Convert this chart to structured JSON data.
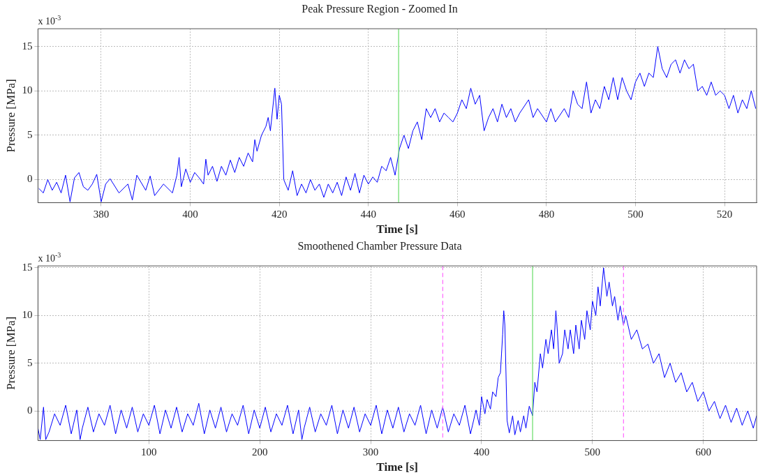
{
  "chart_data": [
    {
      "type": "line",
      "title": "Peak Pressure Region - Zoomed In",
      "xlabel": "Time [s]",
      "ylabel": "Pressure [MPa]",
      "annotations": [
        "x 10$^{-3}$"
      ],
      "series": [
        {
          "color": "#0000ff",
          "x": [
            366,
            367,
            368,
            369,
            370,
            371,
            372,
            373,
            374,
            375,
            376,
            377,
            378,
            379,
            380,
            381,
            382,
            384,
            386,
            387,
            388,
            390,
            391,
            392,
            394,
            396,
            397,
            397.5,
            398,
            399,
            400,
            401,
            402,
            403,
            403.5,
            404,
            405,
            406,
            407,
            408,
            409,
            410,
            411,
            412,
            413,
            414,
            414.5,
            415,
            416,
            417,
            417.5,
            418,
            419,
            419.5,
            420,
            420.5,
            421,
            422,
            423,
            424,
            425,
            426,
            427,
            428,
            429,
            430,
            431,
            432,
            433,
            434,
            435,
            436,
            437,
            438,
            439,
            440,
            441,
            442,
            443,
            444,
            445,
            446,
            447,
            448,
            449,
            450,
            451,
            452,
            453,
            454,
            455,
            456,
            457,
            458,
            459,
            460,
            461,
            462,
            463,
            464,
            465,
            466,
            467,
            468,
            469,
            470,
            471,
            472,
            473,
            474,
            476,
            477,
            478,
            480,
            481,
            482,
            484,
            485,
            486,
            487,
            488,
            489,
            490,
            491,
            492,
            493,
            494,
            495,
            496,
            497,
            498,
            499,
            500,
            501,
            502,
            503,
            504,
            505,
            506,
            507,
            508,
            509,
            510,
            511,
            512,
            513,
            514,
            515,
            516,
            517,
            518,
            519,
            520,
            521,
            522,
            523,
            524,
            525,
            526,
            527
          ],
          "values": [
            -1,
            -1.5,
            0,
            -1.2,
            -0.3,
            -1.5,
            0.5,
            -2.5,
            0.2,
            0.8,
            -0.8,
            -1.2,
            -0.5,
            0.6,
            -2.5,
            -0.5,
            0.1,
            -1.5,
            -0.5,
            -2.3,
            0.5,
            -1.2,
            0.4,
            -1.8,
            -0.5,
            -1.5,
            0.5,
            2.5,
            -0.8,
            1.2,
            -0.3,
            0.8,
            0.2,
            -0.5,
            2.3,
            0.5,
            1.5,
            -0.2,
            1.5,
            0.5,
            2.2,
            0.8,
            2.5,
            1.5,
            3,
            2,
            4.5,
            3.2,
            5,
            6,
            7,
            5.5,
            10.3,
            6.8,
            9.5,
            8.5,
            0,
            -1.2,
            1,
            -1.8,
            -0.5,
            -1.5,
            0,
            -1.2,
            -0.5,
            -2,
            -0.5,
            -1.5,
            -0.3,
            -1.8,
            0.3,
            -1.2,
            0.7,
            -1.5,
            0.5,
            -0.5,
            0.3,
            -0.3,
            1.5,
            1,
            2.5,
            0.5,
            3.5,
            5,
            3.5,
            5.5,
            6.5,
            4.5,
            8,
            7,
            8,
            6.5,
            7.5,
            7,
            6.5,
            7.5,
            9,
            8,
            10.3,
            8.5,
            9.5,
            5.5,
            7,
            8,
            6.5,
            8.5,
            7,
            8,
            6.5,
            7.5,
            9,
            7,
            8,
            6.5,
            8,
            6.5,
            8,
            7,
            10,
            8.5,
            8,
            11,
            7.5,
            9,
            8,
            10.5,
            9,
            11.5,
            9,
            11.5,
            10,
            9,
            11,
            12,
            10.5,
            12,
            11.5,
            15,
            12.5,
            11.5,
            13,
            13.5,
            12,
            13.5,
            12.5,
            13,
            10,
            10.5,
            9.5,
            11,
            9.5,
            10,
            9.5,
            8,
            9.5,
            7.5,
            9,
            8,
            10,
            8
          ]
        }
      ],
      "xlim": [
        365.8,
        527.2
      ],
      "xticks": [
        380,
        400,
        420,
        440,
        460,
        480,
        500,
        520
      ],
      "ylim": [
        -2.6,
        17
      ],
      "yticks": [
        0,
        5,
        10,
        15
      ],
      "grid": true,
      "legend": false,
      "marker": "none",
      "line_style": "solid",
      "ref_lines": [
        {
          "axis": "x",
          "value": 446.8,
          "color": "#66dd66",
          "line_style": "solid"
        }
      ]
    },
    {
      "type": "line",
      "title": "Smoothened Chamber Pressure Data",
      "xlabel": "Time [s]",
      "ylabel": "Pressure [MPa]",
      "annotations": [
        "x 10$^{-3}$"
      ],
      "series": [
        {
          "color": "#0000ff",
          "x": [
            0,
            2,
            5,
            7,
            10,
            15,
            20,
            25,
            30,
            35,
            38,
            40,
            45,
            50,
            55,
            60,
            65,
            70,
            75,
            80,
            85,
            90,
            95,
            100,
            105,
            110,
            115,
            120,
            125,
            130,
            135,
            140,
            145,
            150,
            155,
            160,
            165,
            170,
            175,
            180,
            185,
            190,
            195,
            200,
            205,
            210,
            215,
            220,
            225,
            230,
            235,
            238,
            240,
            245,
            250,
            255,
            260,
            265,
            270,
            275,
            280,
            285,
            290,
            295,
            300,
            305,
            310,
            315,
            320,
            325,
            330,
            335,
            340,
            345,
            350,
            355,
            360,
            365,
            370,
            375,
            380,
            385,
            390,
            395,
            398,
            400,
            403,
            405,
            408,
            410,
            413,
            415,
            417,
            418,
            419,
            420,
            421,
            423,
            425,
            428,
            430,
            433,
            435,
            438,
            440,
            443,
            446,
            448,
            450,
            453,
            455,
            458,
            460,
            463,
            465,
            467,
            468,
            470,
            473,
            475,
            478,
            480,
            483,
            485,
            488,
            490,
            493,
            495,
            498,
            500,
            503,
            505,
            507,
            510,
            513,
            515,
            518,
            520,
            523,
            525,
            528,
            530,
            535,
            540,
            545,
            550,
            555,
            560,
            565,
            570,
            575,
            580,
            585,
            590,
            595,
            600,
            605,
            610,
            615,
            620,
            625,
            630,
            635,
            640,
            645,
            648
          ],
          "values": [
            -1.8,
            -3,
            0.4,
            -3,
            -2.2,
            -0.3,
            -1.5,
            0.6,
            -2.4,
            0.1,
            -3,
            -1.8,
            0.4,
            -2.2,
            -0.3,
            -1.5,
            0.6,
            -2.4,
            0.1,
            -1.8,
            0.4,
            -2.2,
            -0.3,
            -1.5,
            0.6,
            -2.4,
            0.1,
            -1.8,
            0.4,
            -2.2,
            -0.3,
            -1.5,
            0.8,
            -2.4,
            0.1,
            -1.8,
            0.4,
            -2.2,
            -0.3,
            -1.5,
            0.6,
            -2.4,
            0.1,
            -1.8,
            0.4,
            -2.2,
            -0.3,
            -1.5,
            0.6,
            -2.4,
            0.1,
            -3,
            -1.8,
            0.4,
            -2.2,
            -0.3,
            -1.5,
            0.6,
            -2.4,
            0.1,
            -1.8,
            0.4,
            -2.2,
            -0.3,
            -1.5,
            0.6,
            -2.4,
            0.1,
            -1.8,
            0.4,
            -2.2,
            -0.3,
            -1.5,
            0.6,
            -2.4,
            0.1,
            -1.8,
            0.4,
            -2.2,
            -0.3,
            -1.5,
            0.6,
            -2.4,
            0.1,
            -1.5,
            1.5,
            -0.3,
            1.2,
            0.2,
            2,
            1.5,
            3.5,
            4,
            6,
            8,
            10.5,
            9,
            -1,
            -2.3,
            -0.5,
            -2.5,
            -1,
            -2.2,
            -0.5,
            -1.8,
            0.5,
            -0.5,
            3,
            2,
            6,
            4.5,
            7.5,
            6,
            8.5,
            6.5,
            10.5,
            9,
            5,
            6,
            8.5,
            6.5,
            8.5,
            6,
            9,
            6.5,
            9.5,
            7.5,
            10.5,
            8.5,
            11.5,
            10,
            13,
            11,
            15,
            12,
            13.5,
            11,
            12,
            9.5,
            11,
            9,
            10,
            7.5,
            8.5,
            6.5,
            7,
            5,
            6,
            3.5,
            5,
            3,
            4,
            2,
            3,
            1,
            2,
            0,
            1,
            -0.8,
            0.6,
            -1.2,
            0.3,
            -1.5,
            0,
            -1.8,
            -0.5
          ]
        }
      ],
      "xlim": [
        0,
        648
      ],
      "xticks": [
        100,
        200,
        300,
        400,
        500,
        600
      ],
      "ylim": [
        -3.1,
        15.2
      ],
      "yticks": [
        0,
        5,
        10,
        15
      ],
      "grid": true,
      "legend": false,
      "marker": "none",
      "line_style": "solid",
      "ref_lines": [
        {
          "axis": "x",
          "value": 365,
          "color": "#ff66ff",
          "line_style": "dashed"
        },
        {
          "axis": "x",
          "value": 446,
          "color": "#66dd66",
          "line_style": "solid"
        },
        {
          "axis": "x",
          "value": 528,
          "color": "#ff66ff",
          "line_style": "dashed"
        }
      ]
    }
  ]
}
